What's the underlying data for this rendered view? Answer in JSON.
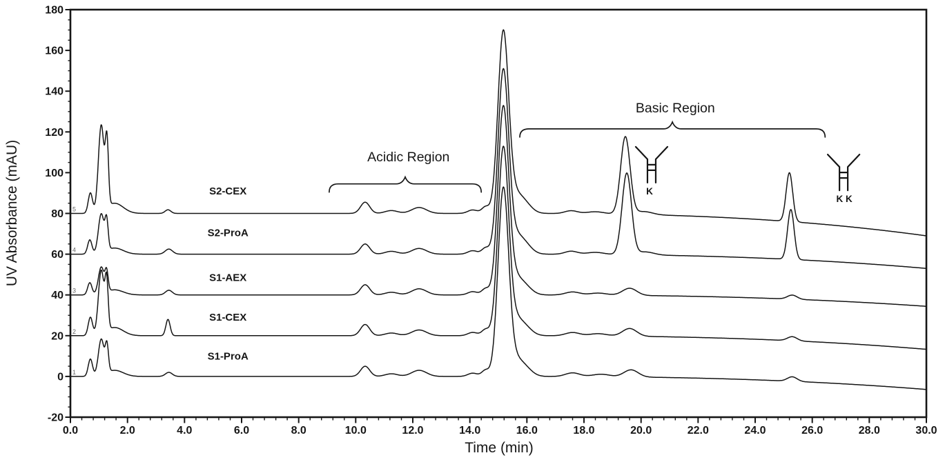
{
  "chart_data": {
    "type": "line",
    "title": "",
    "xlabel": "Time (min)",
    "ylabel": "UV Absorbance (mAU)",
    "xlim": [
      0.0,
      30.0
    ],
    "ylim": [
      -20,
      180
    ],
    "x_tick_step": 2.0,
    "x_minor_tick_step": 0.4,
    "y_tick_step": 20,
    "y_minor_tick_step": 5,
    "x_tick_labels": [
      "0.0",
      "2.0",
      "4.0",
      "6.0",
      "8.0",
      "10.0",
      "12.0",
      "14.0",
      "16.0",
      "18.0",
      "20.0",
      "22.0",
      "24.0",
      "26.0",
      "28.0",
      "30.0"
    ],
    "y_tick_labels": [
      "-20",
      "0",
      "20",
      "40",
      "60",
      "80",
      "100",
      "120",
      "140",
      "160",
      "180"
    ],
    "grid": false,
    "legend_position": "inline-labels-above-each-trace",
    "line_color": "#141414",
    "series": [
      {
        "name": "S2-CEX",
        "trace_number": "5",
        "baseline_offset_mAU": 80,
        "label_t": 5.52,
        "label_v": 91,
        "drift_at_30min_mAU": -11,
        "peaks": [
          [
            0.7,
            10,
            0.075
          ],
          [
            1.08,
            42,
            0.1
          ],
          [
            1.28,
            31,
            0.055
          ],
          [
            1.55,
            5,
            0.3
          ],
          [
            3.42,
            1.8,
            0.1
          ],
          [
            10.33,
            5.5,
            0.16
          ],
          [
            11.25,
            1.4,
            0.22
          ],
          [
            12.22,
            2.9,
            0.26
          ],
          [
            14.1,
            1.7,
            0.17
          ],
          [
            14.55,
            3.2,
            0.13
          ],
          [
            15.17,
            86,
            0.185
          ],
          [
            15.55,
            9,
            0.3
          ],
          [
            15.95,
            3,
            0.25
          ],
          [
            17.55,
            1.4,
            0.22
          ],
          [
            18.4,
            1.0,
            0.3
          ],
          [
            19.45,
            38,
            0.165
          ],
          [
            20.1,
            1.5,
            0.3
          ],
          [
            25.2,
            24,
            0.115
          ]
        ]
      },
      {
        "name": "S2-ProA",
        "trace_number": "4",
        "baseline_offset_mAU": 60,
        "label_t": 5.52,
        "label_v": 70.5,
        "drift_at_30min_mAU": -7,
        "peaks": [
          [
            0.68,
            7,
            0.075
          ],
          [
            1.08,
            19,
            0.1
          ],
          [
            1.27,
            14,
            0.055
          ],
          [
            1.55,
            3,
            0.3
          ],
          [
            3.45,
            2.5,
            0.13
          ],
          [
            10.33,
            5.0,
            0.16
          ],
          [
            11.25,
            1.4,
            0.22
          ],
          [
            12.22,
            2.8,
            0.26
          ],
          [
            14.1,
            1.7,
            0.17
          ],
          [
            14.55,
            3.0,
            0.13
          ],
          [
            15.17,
            87,
            0.185
          ],
          [
            15.55,
            9,
            0.3
          ],
          [
            15.95,
            3,
            0.25
          ],
          [
            17.55,
            1.5,
            0.22
          ],
          [
            18.4,
            1.0,
            0.3
          ],
          [
            19.5,
            40,
            0.165
          ],
          [
            20.15,
            1.5,
            0.3
          ],
          [
            25.25,
            24.5,
            0.115
          ]
        ]
      },
      {
        "name": "S1-AEX",
        "trace_number": "3",
        "baseline_offset_mAU": 40,
        "label_t": 5.52,
        "label_v": 48.5,
        "drift_at_30min_mAU": -5.6,
        "peaks": [
          [
            0.68,
            6,
            0.075
          ],
          [
            1.08,
            13,
            0.1
          ],
          [
            1.27,
            9.5,
            0.055
          ],
          [
            1.55,
            2.5,
            0.3
          ],
          [
            3.45,
            2.3,
            0.12
          ],
          [
            10.33,
            5.0,
            0.16
          ],
          [
            11.25,
            1.3,
            0.22
          ],
          [
            12.22,
            3.0,
            0.26
          ],
          [
            14.1,
            1.6,
            0.17
          ],
          [
            14.55,
            3.0,
            0.13
          ],
          [
            15.17,
            88,
            0.185
          ],
          [
            15.5,
            9,
            0.3
          ],
          [
            15.95,
            3,
            0.25
          ],
          [
            17.6,
            1.5,
            0.25
          ],
          [
            18.5,
            1.0,
            0.3
          ],
          [
            19.6,
            3.5,
            0.25
          ],
          [
            25.3,
            2.0,
            0.17
          ]
        ]
      },
      {
        "name": "S1-CEX",
        "trace_number": "2",
        "baseline_offset_mAU": 20,
        "label_t": 5.52,
        "label_v": 29,
        "drift_at_30min_mAU": -6.7,
        "peaks": [
          [
            0.7,
            9,
            0.075
          ],
          [
            1.08,
            31,
            0.1
          ],
          [
            1.27,
            23,
            0.055
          ],
          [
            1.55,
            4,
            0.3
          ],
          [
            3.42,
            8,
            0.075
          ],
          [
            10.33,
            5.5,
            0.16
          ],
          [
            11.25,
            1.3,
            0.22
          ],
          [
            12.22,
            2.8,
            0.26
          ],
          [
            14.1,
            1.6,
            0.17
          ],
          [
            14.55,
            3.0,
            0.13
          ],
          [
            15.17,
            88,
            0.185
          ],
          [
            15.5,
            9,
            0.3
          ],
          [
            15.95,
            3,
            0.25
          ],
          [
            17.6,
            1.6,
            0.25
          ],
          [
            18.5,
            1.1,
            0.3
          ],
          [
            19.6,
            3.8,
            0.25
          ],
          [
            25.3,
            2.0,
            0.17
          ]
        ]
      },
      {
        "name": "S1-ProA",
        "trace_number": "1",
        "baseline_offset_mAU": 0,
        "label_t": 5.52,
        "label_v": 10,
        "drift_at_30min_mAU": -6.4,
        "peaks": [
          [
            0.7,
            8.5,
            0.075
          ],
          [
            1.08,
            17.5,
            0.1
          ],
          [
            1.28,
            13,
            0.055
          ],
          [
            1.55,
            3,
            0.3
          ],
          [
            3.45,
            2.0,
            0.12
          ],
          [
            10.33,
            5.0,
            0.16
          ],
          [
            11.25,
            1.3,
            0.22
          ],
          [
            12.22,
            3.0,
            0.26
          ],
          [
            14.1,
            1.6,
            0.17
          ],
          [
            14.55,
            3.0,
            0.13
          ],
          [
            15.17,
            88,
            0.185
          ],
          [
            15.5,
            9,
            0.3
          ],
          [
            15.95,
            3,
            0.25
          ],
          [
            17.6,
            1.8,
            0.25
          ],
          [
            18.6,
            1.2,
            0.3
          ],
          [
            19.65,
            3.5,
            0.25
          ],
          [
            25.3,
            2.2,
            0.17
          ]
        ]
      }
    ],
    "annotations": {
      "acidic_region": {
        "label": "Acidic Region",
        "brace_t_start": 9.07,
        "brace_t_end": 14.4,
        "brace_v": 94.5,
        "label_t": 11.85,
        "label_v": 108
      },
      "basic_region": {
        "label": "Basic Region",
        "brace_t_start": 15.75,
        "brace_t_end": 26.45,
        "brace_v": 121.5,
        "label_t": 21.2,
        "label_v": 132
      },
      "antibody_1K": {
        "label": "K",
        "t": 20.37,
        "top_v": 112.7,
        "peak_time_min": 19.5
      },
      "antibody_2K": {
        "label": "K K",
        "t": 27.1,
        "top_v": 108.9,
        "peak_time_min": 25.2
      }
    }
  }
}
